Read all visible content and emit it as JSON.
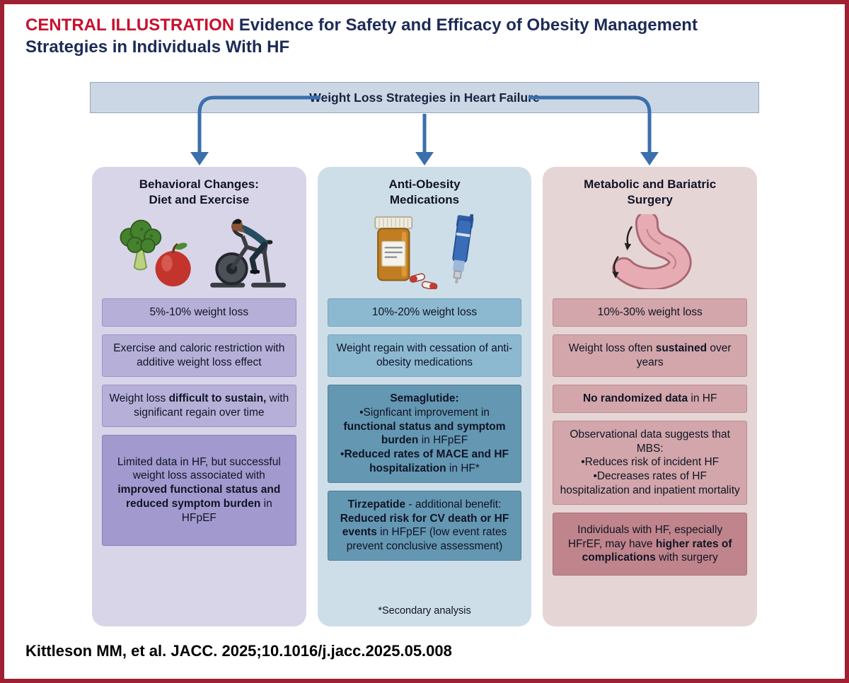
{
  "header": {
    "label": "CENTRAL ILLUSTRATION",
    "title": "Evidence for Safety and Efficacy of Obesity Management Strategies in Individuals With HF"
  },
  "banner": {
    "label": "Weight Loss Strategies in Heart Failure"
  },
  "columns": [
    {
      "title": "Behavioral Changes: Diet and Exercise",
      "icons": [
        "broccoli-icon",
        "apple-icon",
        "exercise-bike-icon"
      ],
      "boxes": [
        "5%-10% weight loss",
        "Exercise and caloric restriction with additive weight loss effect",
        "Weight loss <b>difficult to sustain,</b> with significant regain over time",
        "Limited data in HF, but successful weight loss associated with <b>improved functional status and reduced symptom burden</b> in HFpEF"
      ]
    },
    {
      "title": "Anti-Obesity Medications",
      "icons": [
        "pill-bottle-icon",
        "capsules-icon",
        "injection-pen-icon"
      ],
      "boxes": [
        "10%-20% weight loss",
        "Weight regain with cessation of anti-obesity medications",
        "<b>Semaglutide:</b><br>•Signficant improvement in <b>functional status and symptom burden</b> in HFpEF<br>•<b>Reduced rates of MACE and HF hospitalization</b> in HF*",
        "<b>Tirzepatide</b> - additional benefit: <b>Reduced risk for CV death or HF events</b> in HFpEF (low event rates prevent conclusive assessment)"
      ],
      "footnote": "*Secondary analysis"
    },
    {
      "title": "Metabolic and Bariatric Surgery",
      "icons": [
        "stomach-icon"
      ],
      "boxes": [
        "10%-30% weight loss",
        "Weight loss often <b>sustained</b> over years",
        "<b>No randomized data</b> in HF",
        "Observational data suggests that MBS:<br>•Reduces risk of incident HF<br>•Decreases rates of HF hospitalization and inpatient mortality",
        "Individuals with HF, especially HFrEF, may have <b>higher rates of complications</b> with surgery"
      ]
    }
  ],
  "footer": {
    "citation": "Kittleson MM, et al. JACC. 2025;10.1016/j.jacc.2025.05.008"
  },
  "colors": {
    "border_red": "#9e2033",
    "title_red": "#c8102e",
    "title_navy": "#1c2b57",
    "banner_bg": "#ccd7e5",
    "arrow_blue": "#3b6fad",
    "col_behavioral_bg": "#d8d5e9",
    "col_behavioral_box": "#b6b0d8",
    "col_behavioral_box_dark": "#a29ace",
    "col_medications_bg": "#cddee9",
    "col_medications_box": "#8cb9d0",
    "col_medications_box_dark": "#6497b2",
    "col_surgery_bg": "#e6d5d5",
    "col_surgery_box": "#d2a6aa",
    "col_surgery_box_dark": "#c0858c"
  }
}
